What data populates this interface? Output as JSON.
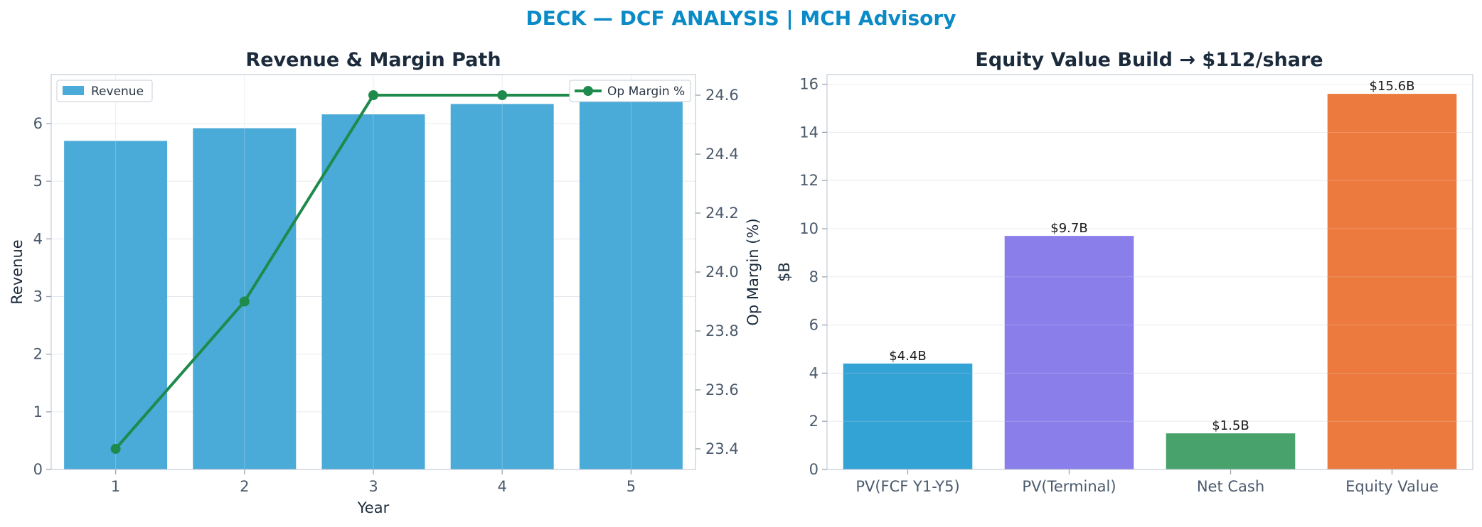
{
  "page": {
    "suptitle": "DECK — DCF ANALYSIS | MCH Advisory"
  },
  "chart_data": [
    {
      "type": "bar",
      "title": "Revenue & Margin Path",
      "xlabel": "Year",
      "ylabel": "Revenue",
      "categories": [
        "1",
        "2",
        "3",
        "4",
        "5"
      ],
      "series": [
        {
          "name": "Revenue",
          "values": [
            5.7,
            5.92,
            6.16,
            6.34,
            6.55
          ],
          "color": "#4aaad8",
          "axis": "left"
        },
        {
          "name": "Op Margin %",
          "type": "line",
          "values": [
            23.4,
            23.9,
            24.6,
            24.6,
            24.6
          ],
          "color": "#1e8a4c",
          "axis": "right",
          "marker": "circle"
        }
      ],
      "ylim": [
        0,
        6.85
      ],
      "yticks": [
        "0",
        "1",
        "2",
        "3",
        "4",
        "5",
        "6"
      ],
      "y2label": "Op Margin (%)",
      "y2lim": [
        23.33,
        24.67
      ],
      "y2ticks": [
        "23.4",
        "23.6",
        "23.8",
        "24.0",
        "24.2",
        "24.4",
        "24.6"
      ],
      "grid": true,
      "legend": [
        {
          "label": "Revenue",
          "placement": "top-left"
        },
        {
          "label": "Op Margin %",
          "placement": "top-right"
        }
      ]
    },
    {
      "type": "bar",
      "title": "Equity Value Build → $112/share",
      "xlabel": "",
      "ylabel": "$B",
      "categories": [
        "PV(FCF Y1-Y5)",
        "PV(Terminal)",
        "Net Cash",
        "Equity Value"
      ],
      "values": [
        4.4,
        9.7,
        1.5,
        15.6
      ],
      "data_labels": [
        "$4.4B",
        "$9.7B",
        "$1.5B",
        "$15.6B"
      ],
      "colors": [
        "#33a2d4",
        "#8a7eea",
        "#47a36b",
        "#ec7a3e"
      ],
      "ylim": [
        0,
        16.4
      ],
      "yticks": [
        "0",
        "2",
        "4",
        "6",
        "8",
        "10",
        "12",
        "14",
        "16"
      ],
      "grid": true
    }
  ]
}
